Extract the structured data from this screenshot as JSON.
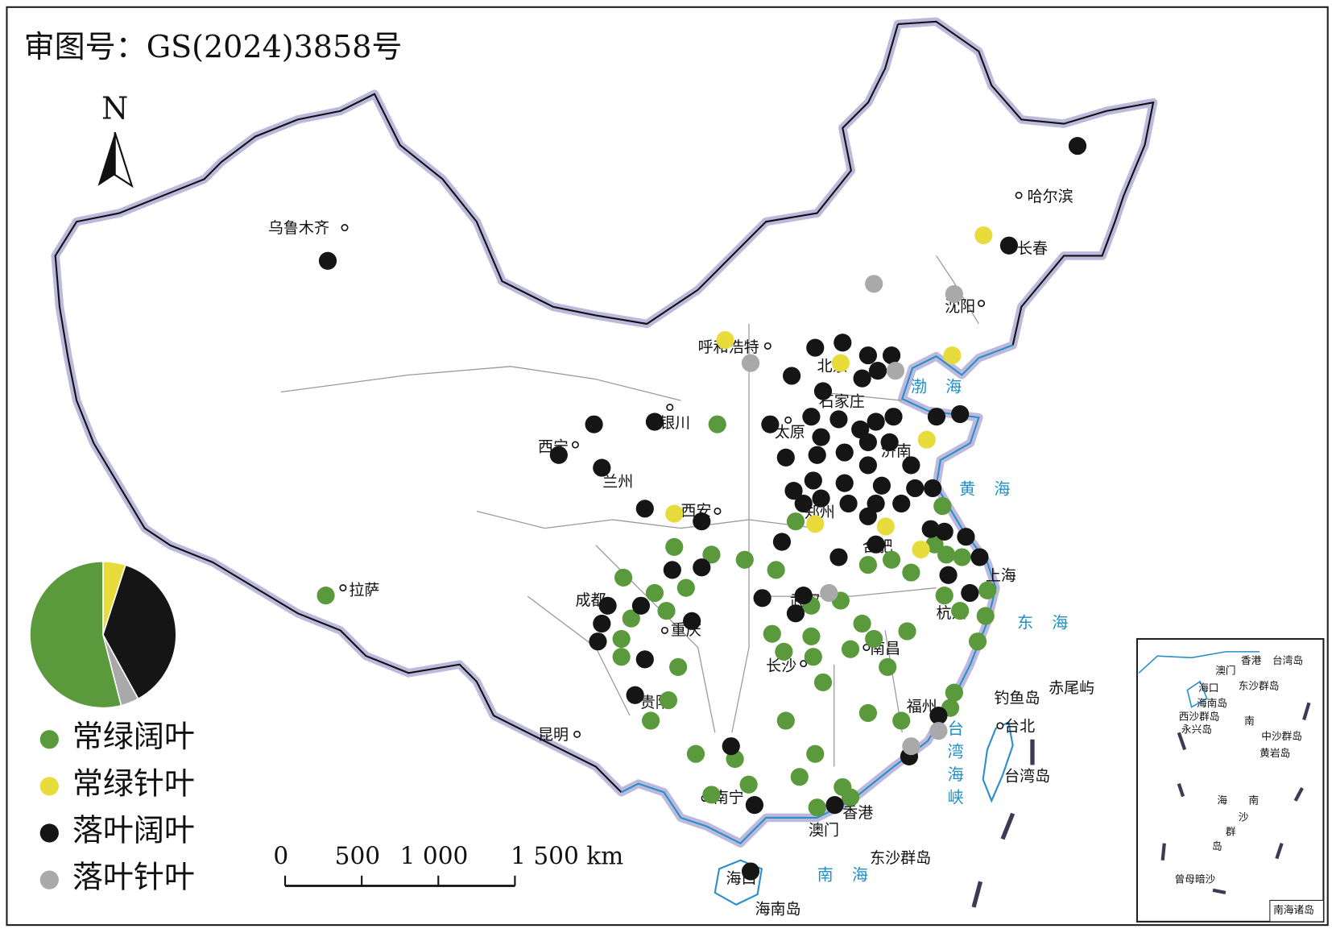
{
  "title": "审图号：GS(2024)3858号",
  "north": "N",
  "chart_data": {
    "type": "map",
    "series": [
      {
        "name": "常绿阔叶",
        "color": "#5b9a3c",
        "share": 54,
        "lon": [
          108.6,
          88.6,
          120.1,
          112.6,
          106.4,
          108.3,
          110.0,
          111.6,
          116.3,
          117.5,
          118.5,
          119.7,
          120.3,
          121.1,
          122.4,
          103.8,
          105.4,
          107.0,
          104.2,
          106.0,
          103.7,
          103.7,
          106.6,
          106.1,
          105.2,
          113.4,
          114.9,
          116.0,
          118.3,
          111.4,
          113.4,
          115.4,
          116.6,
          112.0,
          113.5,
          117.3,
          120.2,
          121.0,
          122.3,
          121.9,
          114.0,
          120.7,
          120.5,
          116.3,
          112.1,
          118.0,
          107.5,
          109.5,
          113.6,
          112.8,
          110.2,
          108.3,
          115.0,
          115.4,
          113.7
        ],
        "lat": [
          37.9,
          31.2,
          34.7,
          34.1,
          33.1,
          32.8,
          32.6,
          32.2,
          32.4,
          32.6,
          32.1,
          33.2,
          32.8,
          32.7,
          31.4,
          31.9,
          31.3,
          31.5,
          30.3,
          30.6,
          29.5,
          28.8,
          28.4,
          27.1,
          26.3,
          30.8,
          31.0,
          30.1,
          29.8,
          29.7,
          29.6,
          29.1,
          29.5,
          29.0,
          28.8,
          28.4,
          31.2,
          30.6,
          30.4,
          29.4,
          27.8,
          27.4,
          26.8,
          26.6,
          26.3,
          26.3,
          25.0,
          24.8,
          25.0,
          24.1,
          23.8,
          23.4,
          23.7,
          23.3,
          22.9
        ]
      },
      {
        "name": "常绿针叶",
        "color": "#e8dc3c",
        "share": 5,
        "lon": [
          122.2,
          109.0,
          114.9,
          120.6,
          119.3,
          106.4,
          113.6,
          117.2,
          119.0
        ],
        "lat": [
          45.3,
          41.2,
          40.3,
          40.6,
          37.3,
          34.4,
          34.0,
          33.9,
          33.0
        ]
      },
      {
        "name": "落叶阔叶",
        "color": "#151515",
        "share": 37,
        "lon": [
          127.0,
          88.7,
          123.5,
          113.6,
          115.0,
          116.3,
          117.5,
          112.4,
          114.0,
          116.0,
          116.8,
          102.3,
          105.4,
          111.3,
          113.4,
          114.8,
          115.9,
          116.7,
          117.6,
          119.8,
          121.0,
          100.5,
          102.7,
          113.9,
          115.1,
          116.3,
          117.4,
          118.5,
          112.1,
          113.7,
          116.3,
          113.5,
          115.1,
          117.0,
          118.7,
          119.6,
          112.5,
          113.0,
          113.9,
          115.3,
          116.7,
          118.0,
          116.3,
          104.9,
          107.8,
          111.9,
          116.7,
          119.5,
          120.2,
          121.3,
          114.8,
          122.0,
          106.3,
          107.8,
          120.4,
          121.5,
          110.9,
          113.0,
          112.6,
          104.7,
          107.3,
          103.0,
          102.7,
          102.5,
          104.9,
          104.4,
          119.9,
          109.3,
          118.4,
          110.5,
          114.6,
          110.3
        ],
        "lat": [
          48.8,
          44.3,
          44.9,
          40.9,
          41.1,
          40.6,
          40.6,
          39.8,
          39.2,
          39.7,
          40.0,
          37.9,
          38.0,
          37.9,
          38.2,
          38.1,
          37.7,
          38.0,
          38.2,
          38.2,
          38.3,
          36.7,
          36.2,
          37.4,
          36.8,
          37.2,
          37.2,
          36.3,
          36.6,
          36.7,
          36.3,
          35.7,
          35.6,
          35.5,
          35.4,
          35.4,
          35.3,
          34.8,
          35.0,
          34.8,
          34.8,
          34.8,
          34.3,
          34.6,
          34.1,
          33.3,
          33.2,
          33.8,
          33.7,
          33.5,
          32.7,
          32.7,
          32.2,
          32.3,
          32.0,
          31.3,
          31.1,
          31.2,
          30.5,
          30.8,
          30.2,
          30.8,
          30.1,
          29.4,
          28.7,
          27.3,
          26.5,
          25.3,
          24.9,
          23.0,
          23.0,
          20.4
        ]
      },
      {
        "name": "落叶针叶",
        "color": "#a9a9a9",
        "share": 4,
        "lon": [
          116.6,
          120.7,
          110.3,
          117.7,
          114.3,
          119.9,
          118.5
        ],
        "lat": [
          43.4,
          43.0,
          40.3,
          40.0,
          31.3,
          25.9,
          25.3
        ]
      }
    ]
  },
  "places": [
    "乌鲁木齐",
    "哈尔滨",
    "长春",
    "沈阳",
    "呼和浩特",
    "北京",
    "石家庄",
    "太原",
    "济南",
    "银川",
    "西宁",
    "兰州",
    "西安",
    "郑州",
    "合肥",
    "上海",
    "武汉",
    "杭州",
    "成都",
    "重庆",
    "长沙",
    "南昌",
    "拉萨",
    "贵阳",
    "福州",
    "台北",
    "钓鱼岛",
    "赤尾屿",
    "台湾岛",
    "昆明",
    "南宁",
    "香港",
    "澳门",
    "海口",
    "海南岛",
    "东沙群岛"
  ],
  "seas": [
    "渤海",
    "黄海",
    "东海",
    "台湾海峡",
    "南海"
  ],
  "scale": [
    {
      "value": 0,
      "label": "0"
    },
    {
      "value": 500,
      "label": "500"
    },
    {
      "value": 1000,
      "label": "1 000"
    },
    {
      "value": 1500,
      "label": "1 500 km"
    }
  ],
  "inset": [
    "香港",
    "澳门",
    "台湾岛",
    "海口",
    "海南岛",
    "东沙群岛",
    "西沙群岛",
    "永兴岛",
    "南",
    "中沙群岛",
    "黄岩岛",
    "海",
    "南",
    "沙",
    "群",
    "岛",
    "曾母暗沙",
    "南海诸岛"
  ]
}
